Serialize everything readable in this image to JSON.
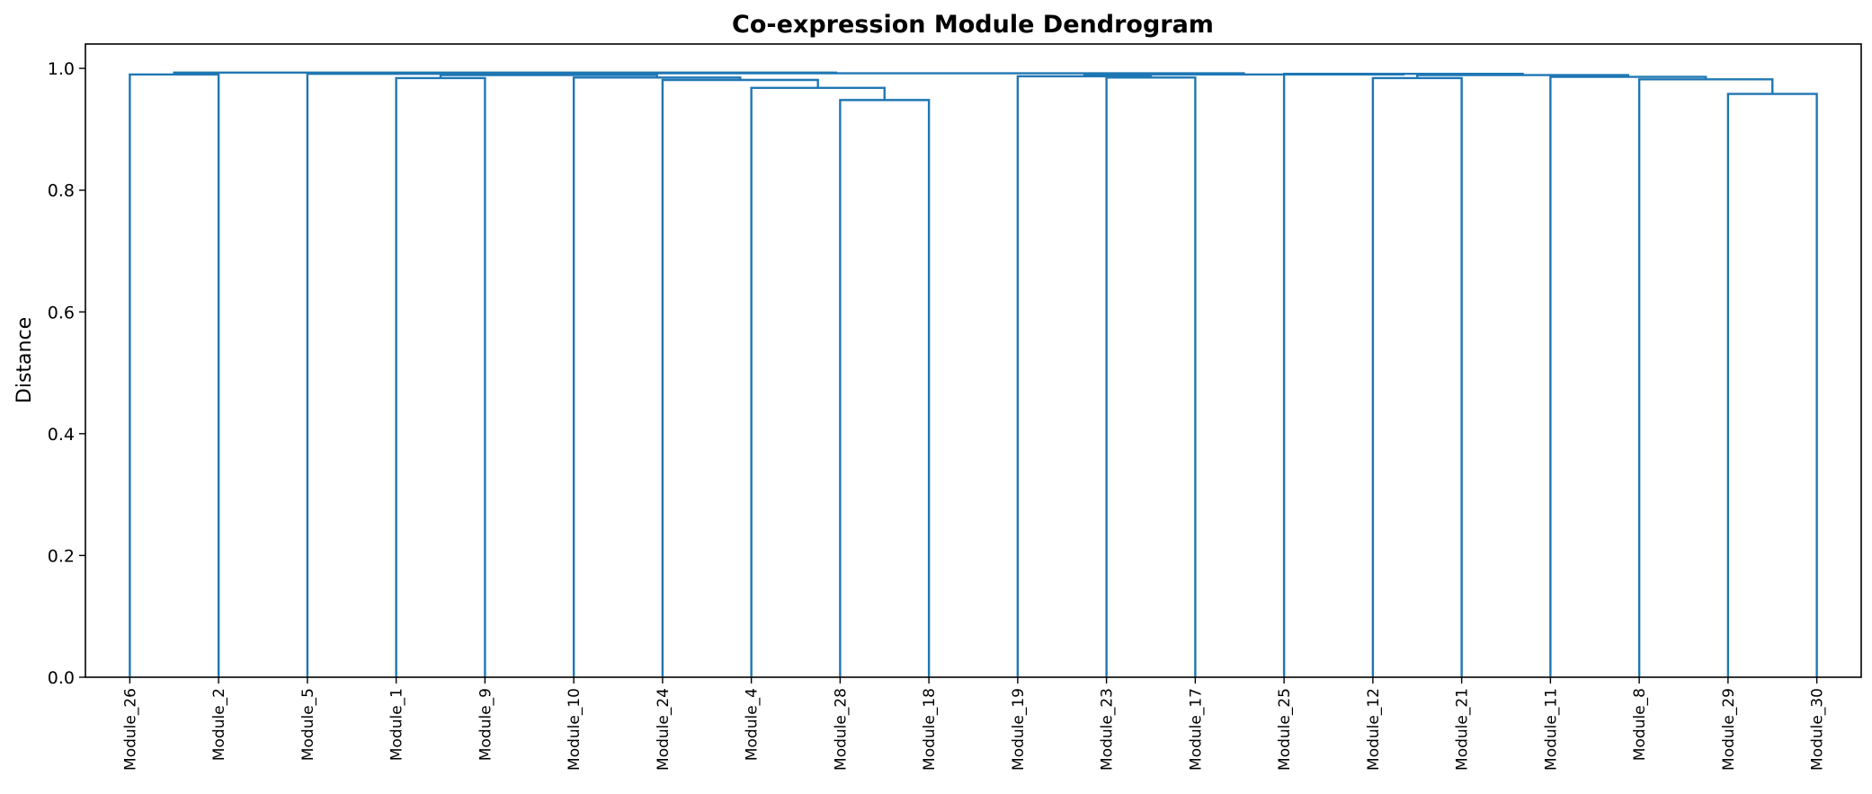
{
  "chart_data": {
    "type": "dendrogram",
    "title": "Co-expression Module Dendrogram",
    "xlabel": "",
    "ylabel": "Distance",
    "ylim": [
      0,
      1.04
    ],
    "yticks": [
      "0.0",
      "0.2",
      "0.4",
      "0.6",
      "0.8",
      "1.0"
    ],
    "line_color": "#1f77b4",
    "grid": false,
    "leaves": [
      "Module_26",
      "Module_2",
      "Module_5",
      "Module_1",
      "Module_9",
      "Module_10",
      "Module_24",
      "Module_4",
      "Module_28",
      "Module_18",
      "Module_19",
      "Module_23",
      "Module_17",
      "Module_25",
      "Module_12",
      "Module_21",
      "Module_11",
      "Module_8",
      "Module_29",
      "Module_30"
    ],
    "merges": [
      {
        "id": "n1",
        "left": "Module_28",
        "right": "Module_18",
        "height": 0.948
      },
      {
        "id": "n2",
        "left": "Module_4",
        "right": "n1",
        "height": 0.968
      },
      {
        "id": "n3",
        "left": "Module_24",
        "right": "n2",
        "height": 0.981
      },
      {
        "id": "n4",
        "left": "Module_10",
        "right": "n3",
        "height": 0.985
      },
      {
        "id": "n5",
        "left": "Module_1",
        "right": "Module_9",
        "height": 0.984
      },
      {
        "id": "n6",
        "left": "n5",
        "right": "n4",
        "height": 0.989
      },
      {
        "id": "n7",
        "left": "Module_5",
        "right": "n6",
        "height": 0.991
      },
      {
        "id": "n8",
        "left": "Module_26",
        "right": "Module_2",
        "height": 0.99
      },
      {
        "id": "n9",
        "left": "Module_23",
        "right": "Module_17",
        "height": 0.985
      },
      {
        "id": "n10",
        "left": "Module_19",
        "right": "n9",
        "height": 0.987
      },
      {
        "id": "n11",
        "left": "Module_29",
        "right": "Module_30",
        "height": 0.958
      },
      {
        "id": "n12",
        "left": "Module_8",
        "right": "n11",
        "height": 0.982
      },
      {
        "id": "n13",
        "left": "Module_11",
        "right": "n12",
        "height": 0.986
      },
      {
        "id": "n14",
        "left": "Module_12",
        "right": "Module_21",
        "height": 0.984
      },
      {
        "id": "n15",
        "left": "n14",
        "right": "n13",
        "height": 0.989
      },
      {
        "id": "n16",
        "left": "Module_25",
        "right": "n15",
        "height": 0.991
      },
      {
        "id": "n17",
        "left": "n10",
        "right": "n16",
        "height": 0.99
      },
      {
        "id": "n18",
        "left": "n7",
        "right": "n17",
        "height": 0.992
      },
      {
        "id": "n19",
        "left": "n8",
        "right": "n18",
        "height": 0.993
      }
    ]
  }
}
